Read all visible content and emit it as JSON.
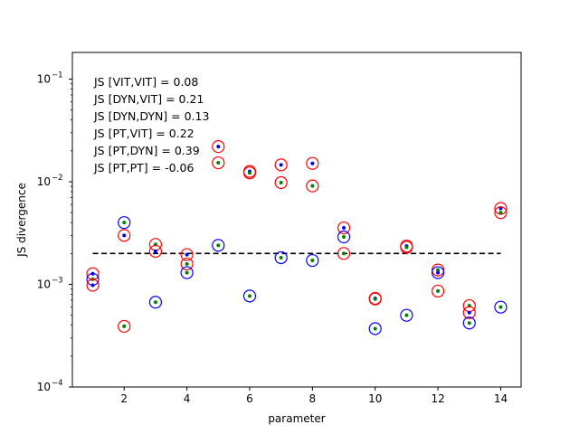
{
  "chart_data": {
    "type": "scatter",
    "xlabel": "parameter",
    "ylabel": "JS divergence",
    "xlim": [
      0.35,
      14.65
    ],
    "ylim_log10": [
      -4,
      -0.74
    ],
    "y_scale": "log",
    "x_ticks": [
      2,
      4,
      6,
      8,
      10,
      12,
      14
    ],
    "y_ticks": [
      {
        "value": 0.0001,
        "label_base": "10",
        "label_exp": "−4"
      },
      {
        "value": 0.001,
        "label_base": "10",
        "label_exp": "−3"
      },
      {
        "value": 0.01,
        "label_base": "10",
        "label_exp": "−2"
      },
      {
        "value": 0.1,
        "label_base": "10",
        "label_exp": "−1"
      }
    ],
    "grid": false,
    "threshold": {
      "y": 0.002,
      "x_from": 1,
      "x_to": 14,
      "style": "dashed",
      "color": "#000000"
    },
    "annotations": [
      "JS [VIT,VIT] = 0.08",
      "JS [DYN,VIT] = 0.21",
      "JS [DYN,DYN] = 0.13",
      "JS [PT,VIT] = 0.22",
      "JS [PT,DYN] = 0.39",
      "JS [PT,PT] = -0.06"
    ],
    "colors": {
      "red": "#ff0000",
      "blue": "#0000ff",
      "green": "#008000"
    },
    "points": [
      {
        "x": 1,
        "y": 0.00127,
        "dot": "blue",
        "ring": "red"
      },
      {
        "x": 1,
        "y": 0.00112,
        "dot": "green",
        "ring": "blue"
      },
      {
        "x": 1,
        "y": 0.00098,
        "dot": "blue",
        "ring": "red"
      },
      {
        "x": 2,
        "y": 0.004,
        "dot": "green",
        "ring": "blue"
      },
      {
        "x": 2,
        "y": 0.003,
        "dot": "blue",
        "ring": "red"
      },
      {
        "x": 2,
        "y": 0.00039,
        "dot": "green",
        "ring": "red"
      },
      {
        "x": 3,
        "y": 0.00245,
        "dot": "green",
        "ring": "red"
      },
      {
        "x": 3,
        "y": 0.0021,
        "dot": "blue",
        "ring": "red"
      },
      {
        "x": 3,
        "y": 0.00067,
        "dot": "green",
        "ring": "blue"
      },
      {
        "x": 4,
        "y": 0.00195,
        "dot": "blue",
        "ring": "red"
      },
      {
        "x": 4,
        "y": 0.00158,
        "dot": "green",
        "ring": "red"
      },
      {
        "x": 4,
        "y": 0.0013,
        "dot": "green",
        "ring": "blue"
      },
      {
        "x": 5,
        "y": 0.022,
        "dot": "blue",
        "ring": "red"
      },
      {
        "x": 5,
        "y": 0.0153,
        "dot": "green",
        "ring": "red"
      },
      {
        "x": 5,
        "y": 0.0024,
        "dot": "green",
        "ring": "blue"
      },
      {
        "x": 6,
        "y": 0.0126,
        "dot": "blue",
        "ring": "red"
      },
      {
        "x": 6,
        "y": 0.0122,
        "dot": "green",
        "ring": "red"
      },
      {
        "x": 6,
        "y": 0.00077,
        "dot": "green",
        "ring": "blue"
      },
      {
        "x": 7,
        "y": 0.0146,
        "dot": "blue",
        "ring": "red"
      },
      {
        "x": 7,
        "y": 0.0098,
        "dot": "green",
        "ring": "red"
      },
      {
        "x": 7,
        "y": 0.00182,
        "dot": "green",
        "ring": "blue"
      },
      {
        "x": 8,
        "y": 0.0151,
        "dot": "blue",
        "ring": "red"
      },
      {
        "x": 8,
        "y": 0.0091,
        "dot": "green",
        "ring": "red"
      },
      {
        "x": 8,
        "y": 0.00171,
        "dot": "green",
        "ring": "blue"
      },
      {
        "x": 9,
        "y": 0.00355,
        "dot": "blue",
        "ring": "red"
      },
      {
        "x": 9,
        "y": 0.0029,
        "dot": "green",
        "ring": "blue"
      },
      {
        "x": 9,
        "y": 0.002,
        "dot": "green",
        "ring": "red"
      },
      {
        "x": 10,
        "y": 0.00073,
        "dot": "blue",
        "ring": "red"
      },
      {
        "x": 10,
        "y": 0.00072,
        "dot": "green",
        "ring": "red"
      },
      {
        "x": 10,
        "y": 0.00037,
        "dot": "green",
        "ring": "blue"
      },
      {
        "x": 11,
        "y": 0.00236,
        "dot": "blue",
        "ring": "red"
      },
      {
        "x": 11,
        "y": 0.0023,
        "dot": "green",
        "ring": "red"
      },
      {
        "x": 11,
        "y": 0.0005,
        "dot": "green",
        "ring": "blue"
      },
      {
        "x": 12,
        "y": 0.00138,
        "dot": "green",
        "ring": "red"
      },
      {
        "x": 12,
        "y": 0.0013,
        "dot": "blue",
        "ring": "blue"
      },
      {
        "x": 12,
        "y": 0.00086,
        "dot": "green",
        "ring": "red"
      },
      {
        "x": 13,
        "y": 0.00062,
        "dot": "green",
        "ring": "red"
      },
      {
        "x": 13,
        "y": 0.00053,
        "dot": "blue",
        "ring": "red"
      },
      {
        "x": 13,
        "y": 0.00042,
        "dot": "green",
        "ring": "blue"
      },
      {
        "x": 14,
        "y": 0.0055,
        "dot": "blue",
        "ring": "red"
      },
      {
        "x": 14,
        "y": 0.005,
        "dot": "green",
        "ring": "red"
      },
      {
        "x": 14,
        "y": 0.0006,
        "dot": "green",
        "ring": "blue"
      }
    ]
  }
}
